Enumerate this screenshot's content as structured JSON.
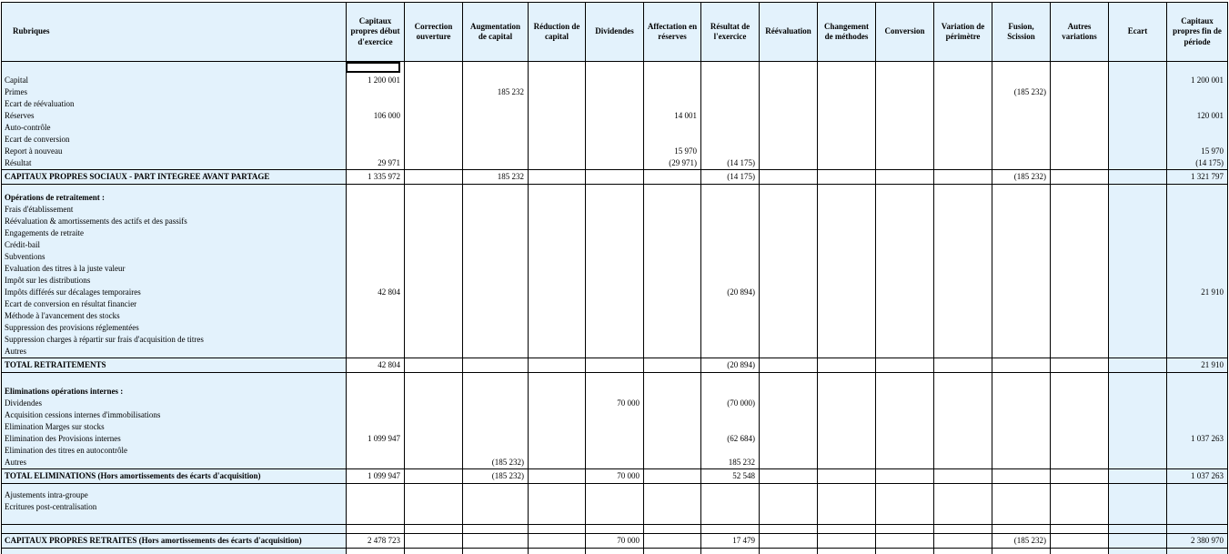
{
  "headers": [
    "Rubriques",
    "Capitaux propres début d'exercice",
    "Correction ouverture",
    "Augmentation de capital",
    "Réduction de capital",
    "Dividendes",
    "Affectation en réserves",
    "Résultat de l'exercice",
    "Réévaluation",
    "Changement de méthodes",
    "Conversion",
    "Variation de périmètre",
    "Fusion, Scission",
    "Autres variations",
    "Ecart",
    "Capitaux propres fin de période"
  ],
  "sections": {
    "social": {
      "labels": [
        "Capital",
        "Primes",
        "Ecart de réévaluation",
        "Réserves",
        "Auto-contrôle",
        "Ecart de conversion",
        "Report à nouveau",
        "Résultat"
      ],
      "values": [
        [
          "1 200 001",
          "",
          "",
          "",
          "",
          "",
          "",
          "",
          "",
          "",
          "",
          "",
          "",
          "",
          "1 200 001"
        ],
        [
          "",
          "",
          "185 232",
          "",
          "",
          "",
          "",
          "",
          "",
          "",
          "",
          "(185 232)",
          "",
          "",
          ""
        ],
        [
          "",
          "",
          "",
          "",
          "",
          "",
          "",
          "",
          "",
          "",
          "",
          "",
          "",
          "",
          ""
        ],
        [
          "106 000",
          "",
          "",
          "",
          "",
          "14 001",
          "",
          "",
          "",
          "",
          "",
          "",
          "",
          "",
          "120 001"
        ],
        [
          "",
          "",
          "",
          "",
          "",
          "",
          "",
          "",
          "",
          "",
          "",
          "",
          "",
          "",
          ""
        ],
        [
          "",
          "",
          "",
          "",
          "",
          "",
          "",
          "",
          "",
          "",
          "",
          "",
          "",
          "",
          ""
        ],
        [
          "",
          "",
          "",
          "",
          "",
          "15 970",
          "",
          "",
          "",
          "",
          "",
          "",
          "",
          "",
          "15 970"
        ],
        [
          "29 971",
          "",
          "",
          "",
          "",
          "(29 971)",
          "(14 175)",
          "",
          "",
          "",
          "",
          "",
          "",
          "",
          "(14 175)"
        ]
      ],
      "total_label": "CAPITAUX PROPRES SOCIAUX - PART INTEGREE AVANT PARTAGE",
      "total_values": [
        "1 335 972",
        "",
        "185 232",
        "",
        "",
        "",
        "(14 175)",
        "",
        "",
        "",
        "",
        "(185 232)",
        "",
        "",
        "1 321 797"
      ]
    },
    "retraitements": {
      "labels": [
        "Opérations de retraitement :",
        "Frais d'établissement",
        "Réévaluation & amortissements des actifs et des passifs",
        "Engagements de retraite",
        "Crédit-bail",
        "Subventions",
        "Evaluation des titres à la juste valeur",
        "Impôt sur les distributions",
        "Impôts différés sur décalages temporaires",
        "Ecart de conversion en résultat financier",
        "Méthode à l'avancement des stocks",
        "Suppression des provisions réglementées",
        "Suppression charges à répartir sur frais d'acquisition de titres",
        "Autres"
      ],
      "values": [
        [
          "",
          "",
          "",
          "",
          "",
          "",
          "",
          "",
          "",
          "",
          "",
          "",
          "",
          "",
          ""
        ],
        [
          "",
          "",
          "",
          "",
          "",
          "",
          "",
          "",
          "",
          "",
          "",
          "",
          "",
          "",
          ""
        ],
        [
          "",
          "",
          "",
          "",
          "",
          "",
          "",
          "",
          "",
          "",
          "",
          "",
          "",
          "",
          ""
        ],
        [
          "",
          "",
          "",
          "",
          "",
          "",
          "",
          "",
          "",
          "",
          "",
          "",
          "",
          "",
          ""
        ],
        [
          "",
          "",
          "",
          "",
          "",
          "",
          "",
          "",
          "",
          "",
          "",
          "",
          "",
          "",
          ""
        ],
        [
          "",
          "",
          "",
          "",
          "",
          "",
          "",
          "",
          "",
          "",
          "",
          "",
          "",
          "",
          ""
        ],
        [
          "",
          "",
          "",
          "",
          "",
          "",
          "",
          "",
          "",
          "",
          "",
          "",
          "",
          "",
          ""
        ],
        [
          "",
          "",
          "",
          "",
          "",
          "",
          "",
          "",
          "",
          "",
          "",
          "",
          "",
          "",
          ""
        ],
        [
          "42 804",
          "",
          "",
          "",
          "",
          "",
          "(20 894)",
          "",
          "",
          "",
          "",
          "",
          "",
          "",
          "21 910"
        ],
        [
          "",
          "",
          "",
          "",
          "",
          "",
          "",
          "",
          "",
          "",
          "",
          "",
          "",
          "",
          ""
        ],
        [
          "",
          "",
          "",
          "",
          "",
          "",
          "",
          "",
          "",
          "",
          "",
          "",
          "",
          "",
          ""
        ],
        [
          "",
          "",
          "",
          "",
          "",
          "",
          "",
          "",
          "",
          "",
          "",
          "",
          "",
          "",
          ""
        ],
        [
          "",
          "",
          "",
          "",
          "",
          "",
          "",
          "",
          "",
          "",
          "",
          "",
          "",
          "",
          ""
        ],
        [
          "",
          "",
          "",
          "",
          "",
          "",
          "",
          "",
          "",
          "",
          "",
          "",
          "",
          "",
          ""
        ]
      ],
      "total_label": "TOTAL RETRAITEMENTS",
      "total_values": [
        "42 804",
        "",
        "",
        "",
        "",
        "",
        "(20 894)",
        "",
        "",
        "",
        "",
        "",
        "",
        "",
        "21 910"
      ]
    },
    "eliminations": {
      "labels": [
        "Eliminations opérations internes :",
        "Dividendes",
        "Acquisition cessions internes d'immobilisations",
        "Elimination Marges sur stocks",
        "Elimination des Provisions internes",
        "Elimination des titres en autocontrôle",
        "Autres"
      ],
      "values": [
        [
          "",
          "",
          "",
          "",
          "",
          "",
          "",
          "",
          "",
          "",
          "",
          "",
          "",
          "",
          ""
        ],
        [
          "",
          "",
          "",
          "",
          "70 000",
          "",
          "(70 000)",
          "",
          "",
          "",
          "",
          "",
          "",
          "",
          ""
        ],
        [
          "",
          "",
          "",
          "",
          "",
          "",
          "",
          "",
          "",
          "",
          "",
          "",
          "",
          "",
          ""
        ],
        [
          "",
          "",
          "",
          "",
          "",
          "",
          "",
          "",
          "",
          "",
          "",
          "",
          "",
          "",
          ""
        ],
        [
          "1 099 947",
          "",
          "",
          "",
          "",
          "",
          "(62 684)",
          "",
          "",
          "",
          "",
          "",
          "",
          "",
          "1 037 263"
        ],
        [
          "",
          "",
          "",
          "",
          "",
          "",
          "",
          "",
          "",
          "",
          "",
          "",
          "",
          "",
          ""
        ],
        [
          "",
          "",
          "(185 232)",
          "",
          "",
          "",
          "185 232",
          "",
          "",
          "",
          "",
          "",
          "",
          "",
          ""
        ]
      ],
      "total_label": "TOTAL ELIMINATIONS",
      "total_note": " (Hors amortissements des écarts d'acquisition)",
      "total_values": [
        "1 099 947",
        "",
        "(185 232)",
        "",
        "70 000",
        "",
        "52 548",
        "",
        "",
        "",
        "",
        "",
        "",
        "",
        "1 037 263"
      ]
    },
    "ajustements": {
      "labels": [
        "Ajustements intra-groupe",
        "Ecritures post-centralisation"
      ]
    },
    "final": {
      "total_label": "CAPITAUX PROPRES RETRAITES",
      "total_note": " (Hors amortissements des écarts d'acquisition)",
      "total_values": [
        "2 478 723",
        "",
        "",
        "",
        "70 000",
        "",
        "17 479",
        "",
        "",
        "",
        "",
        "(185 232)",
        "",
        "",
        "2 380 970"
      ]
    }
  },
  "colors": {
    "header_bg": "#e3f2fc",
    "border": "#000000"
  }
}
